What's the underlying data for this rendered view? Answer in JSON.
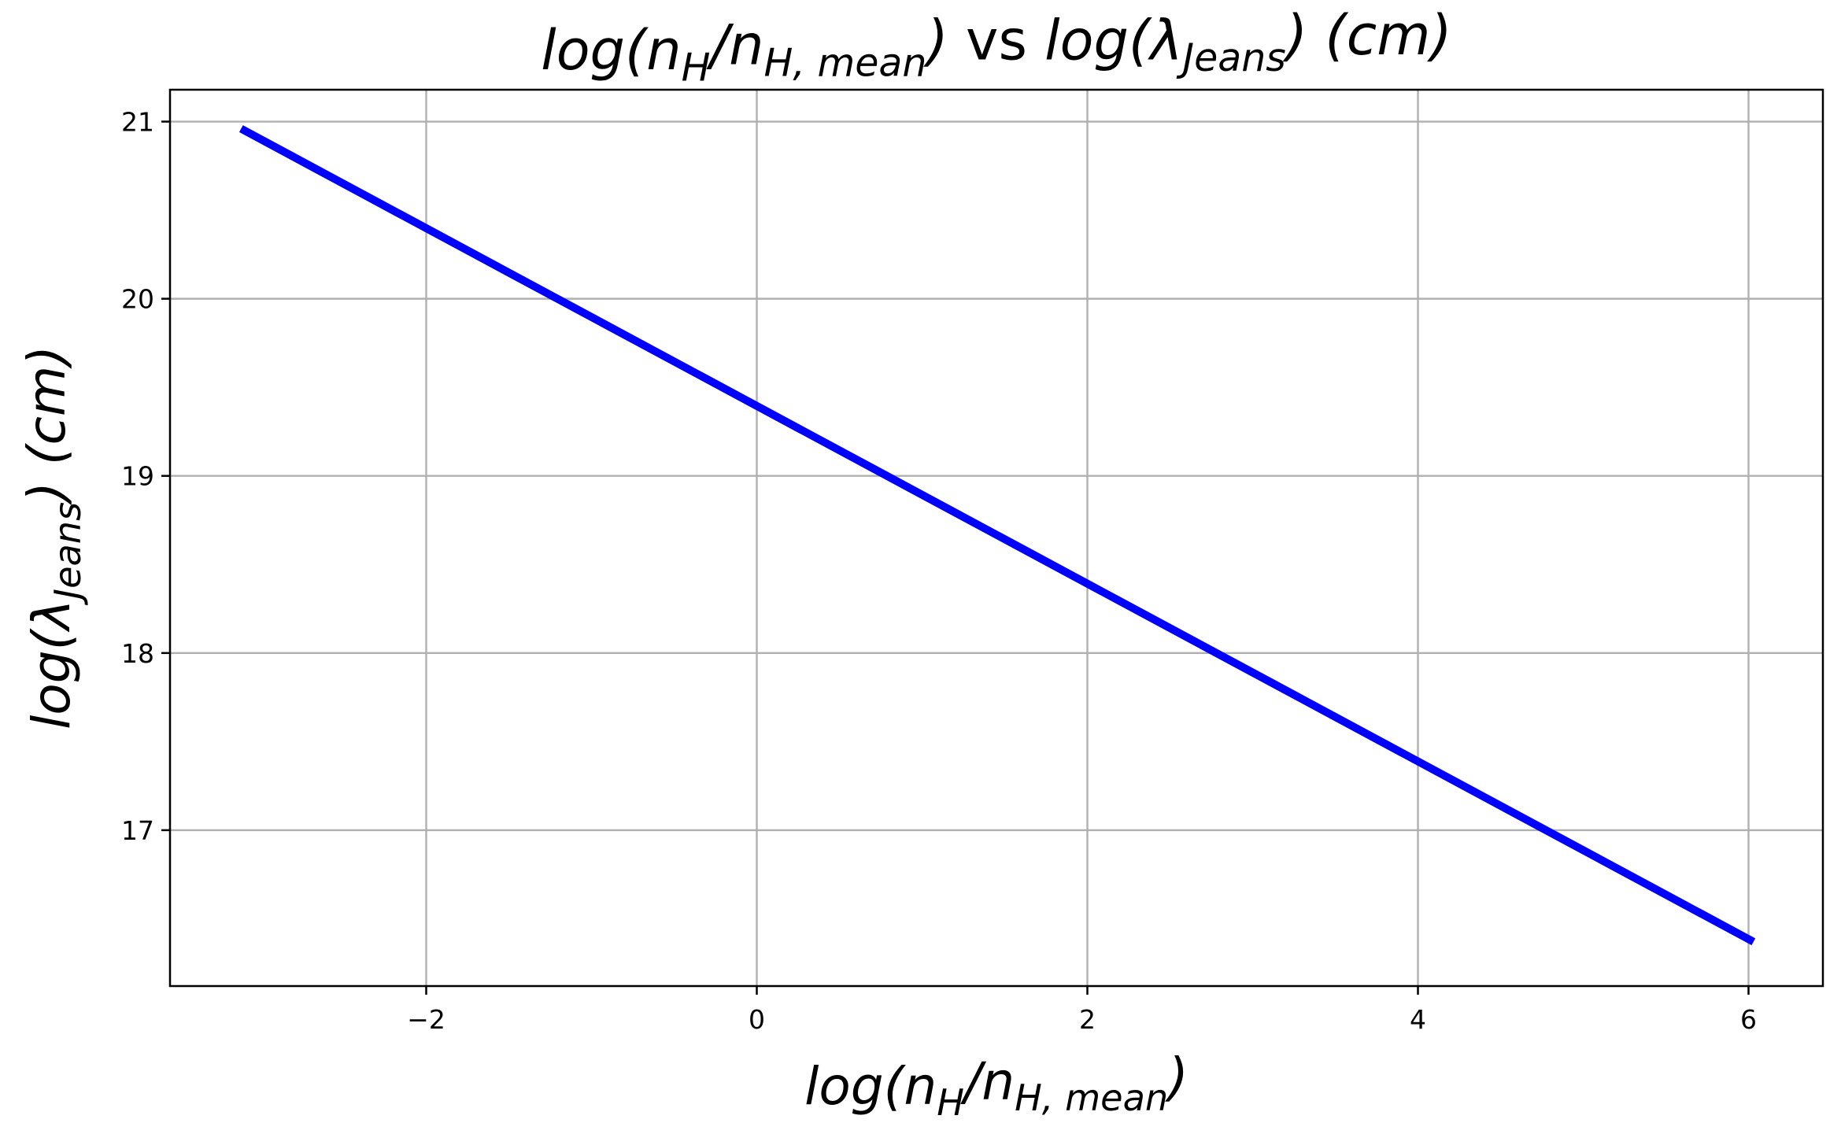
{
  "chart_data": {
    "type": "line",
    "title": {
      "parts": [
        {
          "text": "log(n",
          "italic": true,
          "sub": false
        },
        {
          "text": "H",
          "italic": true,
          "sub": true
        },
        {
          "text": "/n",
          "italic": true,
          "sub": false
        },
        {
          "text": "H, mean",
          "italic": true,
          "sub": true
        },
        {
          "text": ")",
          "italic": true,
          "sub": false
        },
        {
          "text": " vs ",
          "italic": false,
          "sub": false
        },
        {
          "text": "log(λ",
          "italic": true,
          "sub": false
        },
        {
          "text": "Jeans",
          "italic": true,
          "sub": true
        },
        {
          "text": ") (cm)",
          "italic": true,
          "sub": false
        }
      ]
    },
    "xlabel": {
      "parts": [
        {
          "text": "log(n",
          "italic": true,
          "sub": false
        },
        {
          "text": "H",
          "italic": true,
          "sub": true
        },
        {
          "text": "/n",
          "italic": true,
          "sub": false
        },
        {
          "text": "H, mean",
          "italic": true,
          "sub": true
        },
        {
          "text": ")",
          "italic": true,
          "sub": false
        }
      ]
    },
    "ylabel": {
      "parts": [
        {
          "text": "log(λ",
          "italic": true,
          "sub": false
        },
        {
          "text": "Jeans",
          "italic": true,
          "sub": true
        },
        {
          "text": ") (cm)",
          "italic": true,
          "sub": false
        }
      ]
    },
    "xlim": [
      -3.55,
      6.45
    ],
    "ylim": [
      16.12,
      21.18
    ],
    "xticks": [
      -2,
      0,
      2,
      4,
      6
    ],
    "xtick_labels": [
      "−2",
      "0",
      "2",
      "4",
      "6"
    ],
    "yticks": [
      17,
      18,
      19,
      20,
      21
    ],
    "ytick_labels": [
      "17",
      "18",
      "19",
      "20",
      "21"
    ],
    "grid": true,
    "series": [
      {
        "color": "#0000ff",
        "x": [
          -3.12,
          6.03
        ],
        "y": [
          20.96,
          16.37
        ]
      }
    ]
  }
}
